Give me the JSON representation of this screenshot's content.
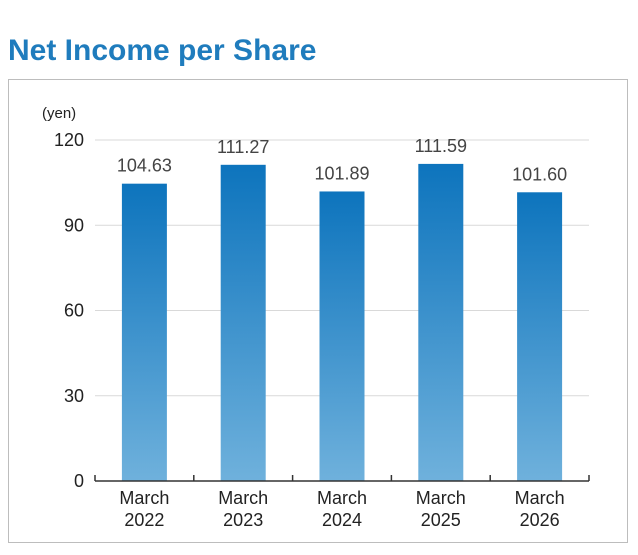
{
  "chart_data": {
    "type": "bar",
    "title": "Net Income per Share",
    "unit_label": "(yen)",
    "categories": [
      [
        "March",
        "2022"
      ],
      [
        "March",
        "2023"
      ],
      [
        "March",
        "2024"
      ],
      [
        "March",
        "2025"
      ],
      [
        "March",
        "2026"
      ]
    ],
    "values": [
      104.63,
      111.27,
      101.89,
      111.59,
      101.6
    ],
    "value_labels": [
      "104.63",
      "111.27",
      "101.89",
      "111.59",
      "101.60"
    ],
    "ylim": [
      0,
      120
    ],
    "yticks": [
      0,
      30,
      60,
      90,
      120
    ],
    "grid": true,
    "colors": {
      "bar_top": "#0d74bd",
      "bar_bottom": "#6fb1dc",
      "title": "#1f7cbd",
      "grid": "#d9d9d9"
    }
  }
}
